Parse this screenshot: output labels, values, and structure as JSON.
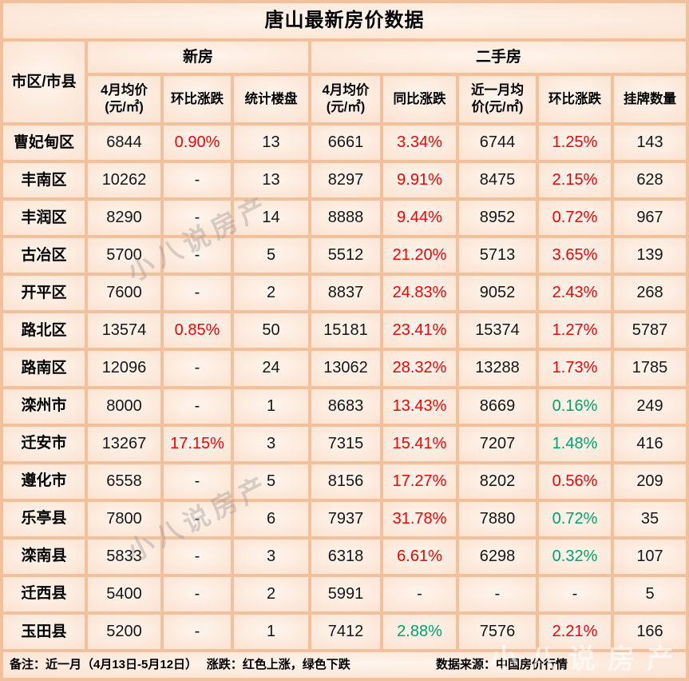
{
  "colors": {
    "rise_red": "#fb0000",
    "fall_green": "#00a06b",
    "text_black": "#161616",
    "grid_line": "#f1c09c",
    "cell_face": "#fce9db"
  },
  "chart_data": {
    "type": "table",
    "title": "唐山最新房价数据",
    "corner_header": "市区/市县",
    "column_groups": [
      {
        "label": "新房",
        "cols": 3
      },
      {
        "label": "二手房",
        "cols": 5
      }
    ],
    "columns": [
      "4月均价\n(元/㎡)",
      "环比涨跌",
      "统计楼盘",
      "4月均价\n(元/㎡)",
      "同比涨跌",
      "近一月均\n价(元/㎡)",
      "环比涨跌",
      "挂牌数量"
    ],
    "color_legend": {
      "r": "红色上涨",
      "g": "绿色下跌",
      "k": "默认黑色"
    },
    "rows": [
      {
        "district": "曹妃甸区",
        "values": [
          "6844",
          "0.90%",
          "13",
          "6661",
          "3.34%",
          "6744",
          "1.25%",
          "143"
        ],
        "colors": [
          "k",
          "r",
          "k",
          "k",
          "r",
          "k",
          "r",
          "k"
        ]
      },
      {
        "district": "丰南区",
        "values": [
          "10262",
          "-",
          "13",
          "8297",
          "9.91%",
          "8475",
          "2.15%",
          "628"
        ],
        "colors": [
          "k",
          "k",
          "k",
          "k",
          "r",
          "k",
          "r",
          "k"
        ]
      },
      {
        "district": "丰润区",
        "values": [
          "8290",
          "-",
          "14",
          "8888",
          "9.44%",
          "8952",
          "0.72%",
          "967"
        ],
        "colors": [
          "k",
          "k",
          "k",
          "k",
          "r",
          "k",
          "r",
          "k"
        ]
      },
      {
        "district": "古冶区",
        "values": [
          "5700",
          "-",
          "5",
          "5512",
          "21.20%",
          "5713",
          "3.65%",
          "139"
        ],
        "colors": [
          "k",
          "k",
          "k",
          "k",
          "r",
          "k",
          "r",
          "k"
        ]
      },
      {
        "district": "开平区",
        "values": [
          "7600",
          "-",
          "2",
          "8837",
          "24.83%",
          "9052",
          "2.43%",
          "268"
        ],
        "colors": [
          "k",
          "k",
          "k",
          "k",
          "r",
          "k",
          "r",
          "k"
        ]
      },
      {
        "district": "路北区",
        "values": [
          "13574",
          "0.85%",
          "50",
          "15181",
          "23.41%",
          "15374",
          "1.27%",
          "5787"
        ],
        "colors": [
          "k",
          "r",
          "k",
          "k",
          "r",
          "k",
          "r",
          "k"
        ]
      },
      {
        "district": "路南区",
        "values": [
          "12096",
          "-",
          "24",
          "13062",
          "28.32%",
          "13288",
          "1.73%",
          "1785"
        ],
        "colors": [
          "k",
          "k",
          "k",
          "k",
          "r",
          "k",
          "r",
          "k"
        ]
      },
      {
        "district": "滦州市",
        "values": [
          "8000",
          "-",
          "1",
          "8683",
          "13.43%",
          "8669",
          "0.16%",
          "249"
        ],
        "colors": [
          "k",
          "k",
          "k",
          "k",
          "r",
          "k",
          "g",
          "k"
        ]
      },
      {
        "district": "迁安市",
        "values": [
          "13267",
          "17.15%",
          "3",
          "7315",
          "15.41%",
          "7207",
          "1.48%",
          "416"
        ],
        "colors": [
          "k",
          "r",
          "k",
          "k",
          "r",
          "k",
          "g",
          "k"
        ]
      },
      {
        "district": "遵化市",
        "values": [
          "6558",
          "-",
          "5",
          "8156",
          "17.27%",
          "8202",
          "0.56%",
          "209"
        ],
        "colors": [
          "k",
          "k",
          "k",
          "k",
          "r",
          "k",
          "r",
          "k"
        ]
      },
      {
        "district": "乐亭县",
        "values": [
          "7800",
          "-",
          "6",
          "7937",
          "31.78%",
          "7880",
          "0.72%",
          "35"
        ],
        "colors": [
          "k",
          "k",
          "k",
          "k",
          "r",
          "k",
          "g",
          "k"
        ]
      },
      {
        "district": "滦南县",
        "values": [
          "5833",
          "-",
          "3",
          "6318",
          "6.61%",
          "6298",
          "0.32%",
          "107"
        ],
        "colors": [
          "k",
          "k",
          "k",
          "k",
          "r",
          "k",
          "g",
          "k"
        ]
      },
      {
        "district": "迁西县",
        "values": [
          "5400",
          "-",
          "2",
          "5991",
          "-",
          "-",
          "-",
          "5"
        ],
        "colors": [
          "k",
          "k",
          "k",
          "k",
          "k",
          "k",
          "k",
          "k"
        ]
      },
      {
        "district": "玉田县",
        "values": [
          "5200",
          "-",
          "1",
          "7412",
          "2.88%",
          "7576",
          "2.21%",
          "166"
        ],
        "colors": [
          "k",
          "k",
          "k",
          "k",
          "g",
          "k",
          "r",
          "k"
        ]
      }
    ]
  },
  "footer": {
    "note": "备注：近一月（4月13日-5月12日）　 涨跌：红色上涨，绿色下跌",
    "source": "数据来源：中国房价行情"
  },
  "watermark": {
    "text": "小八说房产"
  }
}
